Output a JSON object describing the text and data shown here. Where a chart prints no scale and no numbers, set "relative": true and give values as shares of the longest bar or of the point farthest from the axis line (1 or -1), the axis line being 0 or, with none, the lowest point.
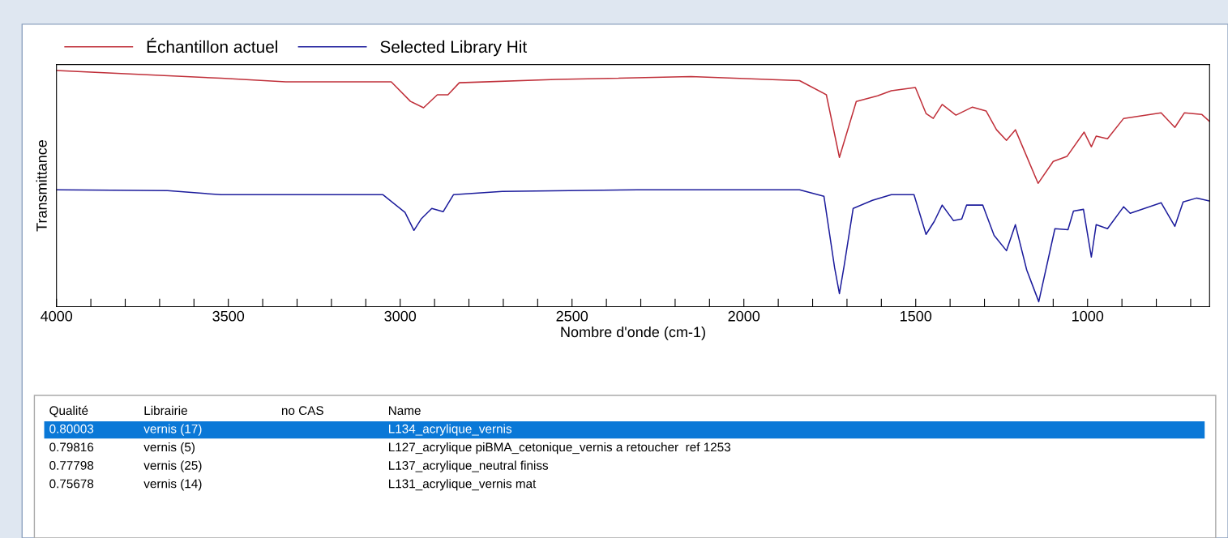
{
  "chart_data": {
    "type": "line",
    "relative": true,
    "xlabel": "Nombre d'onde (cm-1)",
    "ylabel": "Transmittance",
    "xlim": [
      4000,
      645
    ],
    "xticks": [
      4000,
      {
        "value": 3900,
        "label": null
      },
      {
        "value": 3800,
        "label": null
      },
      {
        "value": 3700,
        "label": null
      },
      {
        "value": 3600,
        "label": null
      },
      3500,
      {
        "value": 3400,
        "label": null
      },
      {
        "value": 3300,
        "label": null
      },
      {
        "value": 3200,
        "label": null
      },
      {
        "value": 3100,
        "label": null
      },
      3000,
      {
        "value": 2900,
        "label": null
      },
      {
        "value": 2800,
        "label": null
      },
      {
        "value": 2700,
        "label": null
      },
      {
        "value": 2600,
        "label": null
      },
      2500,
      {
        "value": 2400,
        "label": null
      },
      {
        "value": 2300,
        "label": null
      },
      {
        "value": 2200,
        "label": null
      },
      {
        "value": 2100,
        "label": null
      },
      2000,
      {
        "value": 1900,
        "label": null
      },
      {
        "value": 1800,
        "label": null
      },
      {
        "value": 1700,
        "label": null
      },
      {
        "value": 1600,
        "label": null
      },
      1500,
      {
        "value": 1400,
        "label": null
      },
      {
        "value": 1300,
        "label": null
      },
      {
        "value": 1200,
        "label": null
      },
      {
        "value": 1100,
        "label": null
      },
      1000,
      {
        "value": 900,
        "label": null
      },
      {
        "value": 800,
        "label": null
      },
      {
        "value": 700,
        "label": null
      }
    ],
    "tick_labels": "x",
    "grid": false,
    "legend": "top left",
    "line_style": "solid",
    "marker": "none",
    "series": [
      {
        "name": "Échantillon actuel",
        "color": "#c0303a",
        "x": [
          4000,
          3521,
          3333,
          3026,
          2970,
          2932,
          2892,
          2861,
          2828,
          2545,
          2154,
          1838,
          1760,
          1722,
          1673,
          1611,
          1571,
          1501,
          1470,
          1449,
          1423,
          1383,
          1335,
          1295,
          1265,
          1236,
          1210,
          1177,
          1144,
          1100,
          1060,
          1010,
          989,
          975,
          942,
          895,
          786,
          746,
          718,
          668,
          645
        ],
        "values": [
          1.0,
          0.967,
          0.952,
          0.952,
          0.869,
          0.842,
          0.897,
          0.897,
          0.948,
          0.962,
          0.974,
          0.957,
          0.897,
          0.632,
          0.869,
          0.893,
          0.914,
          0.928,
          0.818,
          0.797,
          0.856,
          0.811,
          0.845,
          0.828,
          0.749,
          0.704,
          0.749,
          0.636,
          0.522,
          0.615,
          0.636,
          0.739,
          0.677,
          0.722,
          0.711,
          0.797,
          0.821,
          0.759,
          0.821,
          0.814,
          0.784
        ]
      },
      {
        "name": "Selected Library Hit",
        "color": "#1c1c9c",
        "x": [
          4000,
          3677,
          3521,
          3050,
          2986,
          2960,
          2939,
          2908,
          2875,
          2845,
          2703,
          2309,
          1838,
          1767,
          1736,
          1722,
          1708,
          1682,
          1626,
          1571,
          1505,
          1470,
          1446,
          1423,
          1390,
          1366,
          1352,
          1305,
          1272,
          1236,
          1210,
          1177,
          1142,
          1095,
          1057,
          1041,
          1012,
          989,
          975,
          942,
          895,
          876,
          786,
          746,
          722,
          682,
          645
        ],
        "values": [
          0.495,
          0.491,
          0.474,
          0.474,
          0.399,
          0.323,
          0.371,
          0.416,
          0.402,
          0.474,
          0.488,
          0.495,
          0.495,
          0.467,
          0.165,
          0.055,
          0.175,
          0.416,
          0.45,
          0.474,
          0.474,
          0.306,
          0.361,
          0.43,
          0.364,
          0.371,
          0.43,
          0.43,
          0.302,
          0.237,
          0.347,
          0.155,
          0.021,
          0.33,
          0.326,
          0.405,
          0.412,
          0.21,
          0.347,
          0.33,
          0.423,
          0.395,
          0.44,
          0.34,
          0.443,
          0.46,
          0.447
        ]
      }
    ],
    "annotations": [
      "Qualité",
      "Librairie",
      "no CAS",
      "Name",
      "0.80003",
      "vernis (17)",
      "L134_acrylique_vernis",
      "0.79816",
      "vernis (5)",
      "L127_acrylique piBMA_cetonique_vernis a retoucher  ref 1253",
      "0.77798",
      "vernis (25)",
      "L137_acrylique_neutral finiss",
      "0.75678",
      "vernis (14)",
      "L131_acrylique_vernis mat"
    ]
  }
}
